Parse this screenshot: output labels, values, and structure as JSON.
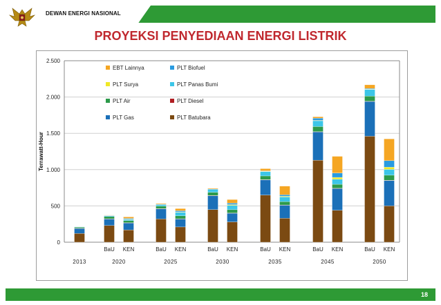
{
  "header": {
    "org_name": "DEWAN ENERGI NASIONAL"
  },
  "colors": {
    "accent_green": "#2e9a35",
    "title_red": "#c0282e"
  },
  "footer": {
    "page_number": "18"
  },
  "chart_data": {
    "type": "bar",
    "stacked": true,
    "title": "PROYEKSI PENYEDIAAN ENERGI LISTRIK",
    "ylabel": "Terrawatt-Hour",
    "ylim": [
      0,
      2500
    ],
    "yticks": [
      0,
      500,
      1000,
      1500,
      2000,
      2500
    ],
    "ytick_labels": [
      "0",
      "500",
      "1.000",
      "1.500",
      "2.000",
      "2.500"
    ],
    "grid": true,
    "legend_position": "top-left",
    "legend_order": [
      "EBT Lainnya",
      "PLT Biofuel",
      "PLT Surya",
      "PLT Panas Bumi",
      "PLT Air",
      "PLT Diesel",
      "PLT Gas",
      "PLT Batubara"
    ],
    "series": [
      {
        "name": "PLT Batubara",
        "color": "#7b4a12"
      },
      {
        "name": "PLT Gas",
        "color": "#1b70b8"
      },
      {
        "name": "PLT Diesel",
        "color": "#b01e22"
      },
      {
        "name": "PLT Air",
        "color": "#2c9a4a"
      },
      {
        "name": "PLT Panas Bumi",
        "color": "#3cc6e8"
      },
      {
        "name": "PLT Surya",
        "color": "#f0e826"
      },
      {
        "name": "PLT Biofuel",
        "color": "#2a9be0"
      },
      {
        "name": "EBT Lainnya",
        "color": "#f5a623"
      }
    ],
    "groups": [
      {
        "year": "2013",
        "bars": [
          {
            "label": "",
            "values": [
              120,
              70,
              3,
              15,
              3,
              0,
              0,
              0
            ]
          }
        ]
      },
      {
        "year": "2020",
        "bars": [
          {
            "label": "BaU",
            "values": [
              230,
              90,
              3,
              30,
              10,
              0,
              5,
              5
            ]
          },
          {
            "label": "KEN",
            "values": [
              170,
              95,
              3,
              30,
              15,
              5,
              10,
              20
            ]
          }
        ]
      },
      {
        "year": "2025",
        "bars": [
          {
            "label": "BaU",
            "values": [
              320,
              140,
              3,
              35,
              20,
              0,
              5,
              10
            ]
          },
          {
            "label": "KEN",
            "values": [
              210,
              110,
              3,
              40,
              50,
              5,
              15,
              30
            ]
          }
        ]
      },
      {
        "year": "2030",
        "bars": [
          {
            "label": "BaU",
            "values": [
              450,
              190,
              3,
              45,
              40,
              0,
              5,
              10
            ]
          },
          {
            "label": "KEN",
            "values": [
              280,
              120,
              3,
              45,
              60,
              10,
              20,
              50
            ]
          }
        ]
      },
      {
        "year": "2035",
        "bars": [
          {
            "label": "BaU",
            "values": [
              650,
              210,
              3,
              50,
              60,
              5,
              5,
              30
            ]
          },
          {
            "label": "KEN",
            "values": [
              330,
              180,
              3,
              45,
              65,
              10,
              20,
              120
            ]
          }
        ]
      },
      {
        "year": "2045",
        "bars": [
          {
            "label": "BaU",
            "values": [
              1130,
              390,
              3,
              70,
              80,
              5,
              30,
              20
            ]
          },
          {
            "label": "KEN",
            "values": [
              440,
              300,
              3,
              55,
              70,
              25,
              60,
              230
            ]
          }
        ]
      },
      {
        "year": "2050",
        "bars": [
          {
            "label": "BaU",
            "values": [
              1460,
              480,
              3,
              70,
              90,
              5,
              10,
              50
            ]
          },
          {
            "label": "KEN",
            "values": [
              500,
              350,
              3,
              70,
              80,
              30,
              90,
              300
            ]
          }
        ]
      }
    ]
  }
}
